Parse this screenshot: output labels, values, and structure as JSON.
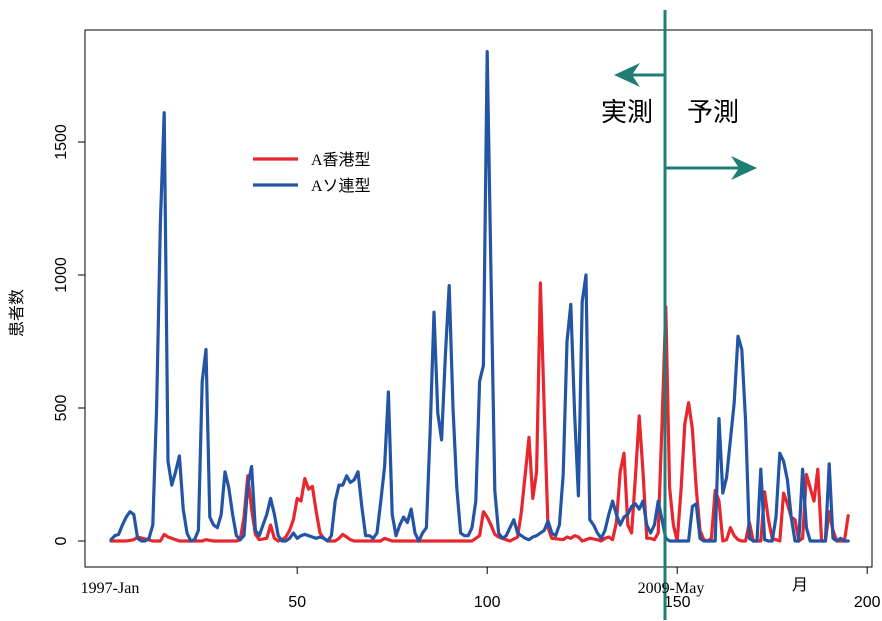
{
  "chart_data": {
    "type": "line",
    "ylabel": "患者数",
    "x_tick_labels": [
      "50",
      "100",
      "150",
      "200"
    ],
    "y_tick_labels": [
      "0",
      "500",
      "1000",
      "1500"
    ],
    "xlim": [
      -2,
      202
    ],
    "ylim": [
      -70,
      1900
    ],
    "x_range_labels": {
      "start": "1997-Jan",
      "split": "2009-May",
      "unit": "月"
    },
    "split_x": 148,
    "annotations": {
      "observed": "実測",
      "forecast": "予測"
    },
    "legend_position": "upper-left-inside",
    "series": [
      {
        "name": "A香港型",
        "color": "#e8262e",
        "points": [
          [
            1,
            0
          ],
          [
            5,
            0
          ],
          [
            7,
            5
          ],
          [
            8,
            15
          ],
          [
            10,
            8
          ],
          [
            12,
            0
          ],
          [
            14,
            0
          ],
          [
            15,
            25
          ],
          [
            16,
            15
          ],
          [
            17,
            10
          ],
          [
            18,
            5
          ],
          [
            19,
            0
          ],
          [
            25,
            0
          ],
          [
            26,
            5
          ],
          [
            28,
            0
          ],
          [
            34,
            0
          ],
          [
            35,
            5
          ],
          [
            36,
            90
          ],
          [
            37,
            245
          ],
          [
            38,
            120
          ],
          [
            39,
            25
          ],
          [
            40,
            5
          ],
          [
            42,
            10
          ],
          [
            43,
            60
          ],
          [
            44,
            10
          ],
          [
            45,
            0
          ],
          [
            46,
            5
          ],
          [
            47,
            15
          ],
          [
            48,
            40
          ],
          [
            49,
            80
          ],
          [
            50,
            160
          ],
          [
            51,
            150
          ],
          [
            52,
            235
          ],
          [
            53,
            195
          ],
          [
            54,
            205
          ],
          [
            55,
            110
          ],
          [
            56,
            30
          ],
          [
            57,
            10
          ],
          [
            58,
            0
          ],
          [
            60,
            0
          ],
          [
            61,
            10
          ],
          [
            62,
            25
          ],
          [
            63,
            15
          ],
          [
            64,
            5
          ],
          [
            65,
            0
          ],
          [
            72,
            0
          ],
          [
            73,
            10
          ],
          [
            74,
            5
          ],
          [
            75,
            0
          ],
          [
            96,
            0
          ],
          [
            98,
            20
          ],
          [
            99,
            110
          ],
          [
            100,
            90
          ],
          [
            101,
            60
          ],
          [
            102,
            25
          ],
          [
            103,
            15
          ],
          [
            104,
            10
          ],
          [
            105,
            5
          ],
          [
            106,
            0
          ],
          [
            108,
            15
          ],
          [
            109,
            110
          ],
          [
            110,
            250
          ],
          [
            111,
            390
          ],
          [
            112,
            160
          ],
          [
            113,
            260
          ],
          [
            114,
            970
          ],
          [
            115,
            500
          ],
          [
            116,
            50
          ],
          [
            117,
            10
          ],
          [
            120,
            5
          ],
          [
            121,
            15
          ],
          [
            122,
            10
          ],
          [
            123,
            20
          ],
          [
            124,
            15
          ],
          [
            125,
            0
          ],
          [
            126,
            5
          ],
          [
            127,
            10
          ],
          [
            129,
            5
          ],
          [
            130,
            0
          ],
          [
            131,
            10
          ],
          [
            132,
            15
          ],
          [
            133,
            5
          ],
          [
            134,
            70
          ],
          [
            135,
            260
          ],
          [
            136,
            330
          ],
          [
            137,
            60
          ],
          [
            138,
            30
          ],
          [
            139,
            240
          ],
          [
            140,
            470
          ],
          [
            141,
            260
          ],
          [
            142,
            10
          ],
          [
            143,
            10
          ],
          [
            144,
            5
          ],
          [
            145,
            30
          ],
          [
            146,
            440
          ],
          [
            147,
            880
          ],
          [
            148,
            200
          ],
          [
            149,
            60
          ],
          [
            150,
            0
          ],
          [
            151,
            190
          ],
          [
            152,
            440
          ],
          [
            153,
            520
          ],
          [
            154,
            420
          ],
          [
            155,
            200
          ],
          [
            156,
            40
          ],
          [
            157,
            5
          ],
          [
            158,
            0
          ],
          [
            159,
            10
          ],
          [
            160,
            190
          ],
          [
            161,
            150
          ],
          [
            162,
            0
          ],
          [
            163,
            5
          ],
          [
            164,
            50
          ],
          [
            165,
            20
          ],
          [
            166,
            5
          ],
          [
            167,
            0
          ],
          [
            168,
            0
          ],
          [
            169,
            70
          ],
          [
            170,
            0
          ],
          [
            172,
            0
          ],
          [
            173,
            185
          ],
          [
            174,
            80
          ],
          [
            175,
            10
          ],
          [
            176,
            5
          ],
          [
            177,
            0
          ],
          [
            178,
            180
          ],
          [
            179,
            140
          ],
          [
            180,
            90
          ],
          [
            181,
            80
          ],
          [
            182,
            0
          ],
          [
            183,
            10
          ],
          [
            184,
            250
          ],
          [
            185,
            200
          ],
          [
            186,
            150
          ],
          [
            187,
            270
          ],
          [
            188,
            0
          ],
          [
            189,
            0
          ],
          [
            190,
            110
          ],
          [
            191,
            40
          ],
          [
            192,
            0
          ],
          [
            194,
            0
          ],
          [
            195,
            95
          ]
        ]
      },
      {
        "name": "Aソ連型",
        "color": "#2455a4",
        "points": [
          [
            1,
            5
          ],
          [
            2,
            20
          ],
          [
            3,
            25
          ],
          [
            4,
            60
          ],
          [
            5,
            90
          ],
          [
            6,
            110
          ],
          [
            7,
            100
          ],
          [
            8,
            10
          ],
          [
            9,
            0
          ],
          [
            10,
            0
          ],
          [
            11,
            10
          ],
          [
            12,
            60
          ],
          [
            13,
            500
          ],
          [
            14,
            1200
          ],
          [
            15,
            1610
          ],
          [
            16,
            300
          ],
          [
            17,
            210
          ],
          [
            18,
            260
          ],
          [
            19,
            320
          ],
          [
            20,
            120
          ],
          [
            21,
            30
          ],
          [
            22,
            0
          ],
          [
            23,
            5
          ],
          [
            24,
            40
          ],
          [
            25,
            600
          ],
          [
            26,
            720
          ],
          [
            27,
            90
          ],
          [
            28,
            60
          ],
          [
            29,
            50
          ],
          [
            30,
            100
          ],
          [
            31,
            260
          ],
          [
            32,
            200
          ],
          [
            33,
            100
          ],
          [
            34,
            20
          ],
          [
            35,
            5
          ],
          [
            36,
            20
          ],
          [
            37,
            210
          ],
          [
            38,
            280
          ],
          [
            39,
            40
          ],
          [
            40,
            20
          ],
          [
            41,
            60
          ],
          [
            42,
            100
          ],
          [
            43,
            160
          ],
          [
            44,
            100
          ],
          [
            45,
            20
          ],
          [
            46,
            0
          ],
          [
            47,
            0
          ],
          [
            48,
            10
          ],
          [
            49,
            30
          ],
          [
            50,
            10
          ],
          [
            51,
            20
          ],
          [
            52,
            25
          ],
          [
            53,
            20
          ],
          [
            54,
            15
          ],
          [
            55,
            10
          ],
          [
            56,
            15
          ],
          [
            57,
            10
          ],
          [
            58,
            0
          ],
          [
            59,
            20
          ],
          [
            60,
            150
          ],
          [
            61,
            210
          ],
          [
            62,
            210
          ],
          [
            63,
            245
          ],
          [
            64,
            220
          ],
          [
            65,
            230
          ],
          [
            66,
            260
          ],
          [
            67,
            130
          ],
          [
            68,
            20
          ],
          [
            69,
            20
          ],
          [
            70,
            10
          ],
          [
            71,
            30
          ],
          [
            72,
            150
          ],
          [
            73,
            280
          ],
          [
            74,
            560
          ],
          [
            75,
            100
          ],
          [
            76,
            20
          ],
          [
            77,
            60
          ],
          [
            78,
            90
          ],
          [
            79,
            70
          ],
          [
            80,
            120
          ],
          [
            81,
            30
          ],
          [
            82,
            0
          ],
          [
            83,
            30
          ],
          [
            84,
            50
          ],
          [
            85,
            420
          ],
          [
            86,
            860
          ],
          [
            87,
            480
          ],
          [
            88,
            380
          ],
          [
            89,
            700
          ],
          [
            90,
            960
          ],
          [
            91,
            500
          ],
          [
            92,
            200
          ],
          [
            93,
            30
          ],
          [
            94,
            20
          ],
          [
            95,
            20
          ],
          [
            96,
            50
          ],
          [
            97,
            150
          ],
          [
            98,
            600
          ],
          [
            99,
            660
          ],
          [
            100,
            1840
          ],
          [
            101,
            1000
          ],
          [
            102,
            190
          ],
          [
            103,
            30
          ],
          [
            104,
            10
          ],
          [
            105,
            20
          ],
          [
            106,
            50
          ],
          [
            107,
            80
          ],
          [
            108,
            30
          ],
          [
            109,
            20
          ],
          [
            110,
            10
          ],
          [
            111,
            5
          ],
          [
            112,
            15
          ],
          [
            113,
            20
          ],
          [
            114,
            30
          ],
          [
            115,
            40
          ],
          [
            116,
            75
          ],
          [
            117,
            30
          ],
          [
            118,
            20
          ],
          [
            119,
            60
          ],
          [
            120,
            250
          ],
          [
            121,
            750
          ],
          [
            122,
            890
          ],
          [
            123,
            480
          ],
          [
            124,
            170
          ],
          [
            125,
            900
          ],
          [
            126,
            1000
          ],
          [
            127,
            80
          ],
          [
            128,
            60
          ],
          [
            129,
            30
          ],
          [
            130,
            10
          ],
          [
            131,
            40
          ],
          [
            132,
            100
          ],
          [
            133,
            150
          ],
          [
            134,
            100
          ],
          [
            135,
            60
          ],
          [
            136,
            90
          ],
          [
            137,
            100
          ],
          [
            138,
            130
          ],
          [
            139,
            140
          ],
          [
            140,
            120
          ],
          [
            141,
            150
          ],
          [
            142,
            60
          ],
          [
            143,
            30
          ],
          [
            144,
            60
          ],
          [
            145,
            150
          ],
          [
            146,
            80
          ],
          [
            147,
            10
          ],
          [
            148,
            0
          ],
          [
            150,
            0
          ],
          [
            153,
            0
          ],
          [
            154,
            130
          ],
          [
            155,
            140
          ],
          [
            156,
            10
          ],
          [
            157,
            0
          ],
          [
            158,
            0
          ],
          [
            160,
            0
          ],
          [
            161,
            460
          ],
          [
            162,
            180
          ],
          [
            163,
            240
          ],
          [
            164,
            380
          ],
          [
            165,
            520
          ],
          [
            166,
            770
          ],
          [
            167,
            720
          ],
          [
            168,
            450
          ],
          [
            169,
            10
          ],
          [
            170,
            0
          ],
          [
            171,
            0
          ],
          [
            172,
            270
          ],
          [
            173,
            5
          ],
          [
            174,
            0
          ],
          [
            175,
            0
          ],
          [
            176,
            90
          ],
          [
            177,
            330
          ],
          [
            178,
            300
          ],
          [
            179,
            230
          ],
          [
            180,
            90
          ],
          [
            181,
            0
          ],
          [
            182,
            0
          ],
          [
            183,
            270
          ],
          [
            184,
            50
          ],
          [
            185,
            0
          ],
          [
            186,
            0
          ],
          [
            187,
            0
          ],
          [
            188,
            0
          ],
          [
            189,
            0
          ],
          [
            190,
            290
          ],
          [
            191,
            10
          ],
          [
            192,
            0
          ],
          [
            193,
            10
          ],
          [
            194,
            0
          ],
          [
            195,
            0
          ]
        ]
      }
    ]
  }
}
